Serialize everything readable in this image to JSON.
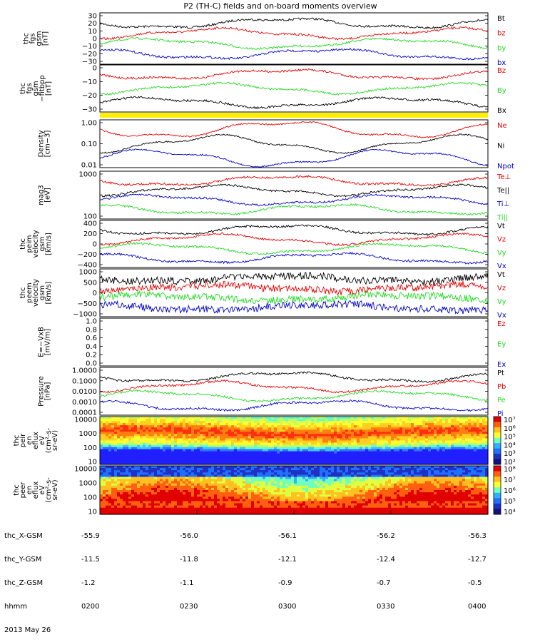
{
  "title": "P2 (TH-C) fields and on-board moments overview",
  "date": "2013 May 26",
  "colors": {
    "black": "#000000",
    "red": "#ee0000",
    "green": "#22dd22",
    "blue": "#0000cc",
    "yellow": "#ffee00"
  },
  "orbit": {
    "labels": [
      "thc_X-GSM",
      "thc_Y-GSM",
      "thc_Z-GSM",
      "hhmm"
    ],
    "columns": [
      [
        "-55.9",
        "-11.5",
        "-1.2",
        "0200"
      ],
      [
        "-56.0",
        "-11.8",
        "-1.1",
        "0230"
      ],
      [
        "-56.1",
        "-12.1",
        "-0.9",
        "0300"
      ],
      [
        "-56.2",
        "-12.4",
        "-0.7",
        "0330"
      ],
      [
        "-56.3",
        "-12.7",
        "-0.5",
        "0400"
      ]
    ]
  },
  "chart_data": [
    {
      "type": "line",
      "ylabel": [
        "thc",
        "fgs",
        "gsm",
        "[nT]"
      ],
      "yticks": [
        "30",
        "20",
        "10",
        "0",
        "−10",
        "−20",
        "−30"
      ],
      "ylim": [
        -30,
        35
      ],
      "legend": [
        {
          "name": "Bt",
          "color": "black"
        },
        {
          "name": "bz",
          "color": "red"
        },
        {
          "name": "by",
          "color": "green"
        },
        {
          "name": "bx",
          "color": "blue"
        }
      ]
    },
    {
      "type": "line",
      "ylabel": [
        "thc",
        "fgs",
        "gsm",
        "−fitbpp",
        "[nT]"
      ],
      "yticks": [
        "0",
        "−10",
        "−20",
        "−30"
      ],
      "ylim": [
        -35,
        5
      ],
      "legend": [
        {
          "name": "Bz",
          "color": "red"
        },
        {
          "name": "By",
          "color": "green"
        },
        {
          "name": "Bx",
          "color": "black"
        }
      ]
    },
    {
      "type": "line",
      "ylabel": [
        "Density",
        "[cm−3]"
      ],
      "yticks": [
        "1.00",
        "0.10",
        "0.01"
      ],
      "log": true,
      "ylim": [
        0.01,
        10
      ],
      "legend": [
        {
          "name": "Ne",
          "color": "red"
        },
        {
          "name": "Ni",
          "color": "black"
        },
        {
          "name": "Npot",
          "color": "blue"
        }
      ]
    },
    {
      "type": "line",
      "ylabel": [
        "mag3",
        "[eV]"
      ],
      "yticks": [
        "1000",
        "100"
      ],
      "log": true,
      "ylim": [
        20,
        8000
      ],
      "legend": [
        {
          "name": "Te⊥",
          "color": "red"
        },
        {
          "name": "Te||",
          "color": "black"
        },
        {
          "name": "Ti⊥",
          "color": "blue"
        },
        {
          "name": "Ti||",
          "color": "green"
        }
      ]
    },
    {
      "type": "line",
      "ylabel": [
        "thc",
        "peim",
        "velocity",
        "gsm",
        "[km/s]"
      ],
      "yticks": [
        "400",
        "200",
        "0",
        "−200",
        "−400"
      ],
      "ylim": [
        -400,
        420
      ],
      "legend": [
        {
          "name": "Vt",
          "color": "black"
        },
        {
          "name": "Vz",
          "color": "red"
        },
        {
          "name": "Vy",
          "color": "green"
        },
        {
          "name": "Vx",
          "color": "blue"
        }
      ]
    },
    {
      "type": "line",
      "ylabel": [
        "thc",
        "peem",
        "velocity",
        "gsm",
        "[km/s]"
      ],
      "yticks": [
        "1000",
        "500",
        "0",
        "−500",
        "−1000"
      ],
      "ylim": [
        -1000,
        1000
      ],
      "legend": [
        {
          "name": "Vt",
          "color": "black"
        },
        {
          "name": "Vz",
          "color": "red"
        },
        {
          "name": "Vy",
          "color": "green"
        },
        {
          "name": "Vx",
          "color": "blue"
        }
      ]
    },
    {
      "type": "line",
      "ylabel": [
        "E=−VxB",
        "[mV/m]"
      ],
      "yticks": [
        "1.0",
        "0.8",
        "0.6",
        "0.4",
        "0.2",
        "0.0"
      ],
      "ylim": [
        0,
        1
      ],
      "legend": [
        {
          "name": "Ez",
          "color": "red"
        },
        {
          "name": "Ey",
          "color": "green"
        },
        {
          "name": "Ex",
          "color": "blue"
        }
      ]
    },
    {
      "type": "line",
      "ylabel": [
        "Pressure",
        "[nPa]"
      ],
      "yticks": [
        "1.0000",
        "0.1000",
        "0.0100",
        "0.0010",
        "0.0001"
      ],
      "log": true,
      "ylim": [
        0.0001,
        1
      ],
      "legend": [
        {
          "name": "Pt",
          "color": "black"
        },
        {
          "name": "Pb",
          "color": "red"
        },
        {
          "name": "Pe",
          "color": "green"
        },
        {
          "name": "Pi",
          "color": "blue"
        }
      ]
    },
    {
      "type": "heatmap",
      "ylabel": [
        "thc",
        "peir",
        "en",
        "eflux",
        "eV",
        "(cm²-s-",
        "sr-eV)"
      ],
      "yticks": [
        "10000",
        "1000",
        "100",
        "10"
      ],
      "log": true,
      "colorbar": {
        "ticks": [
          "10⁷",
          "10⁶",
          "10⁵",
          "10⁴",
          "10³",
          "10²"
        ],
        "range": [
          100,
          10000000
        ]
      }
    },
    {
      "type": "heatmap",
      "ylabel": [
        "thc",
        "peer",
        "en",
        "eflux",
        "eV",
        "(cm²-s-",
        "sr-eV)"
      ],
      "yticks": [
        "10000",
        "1000",
        "100",
        "10"
      ],
      "log": true,
      "colorbar": {
        "ticks": [
          "10⁸",
          "10⁷",
          "10⁶",
          "10⁵",
          "10⁴"
        ],
        "range": [
          10000,
          100000000
        ]
      }
    }
  ]
}
